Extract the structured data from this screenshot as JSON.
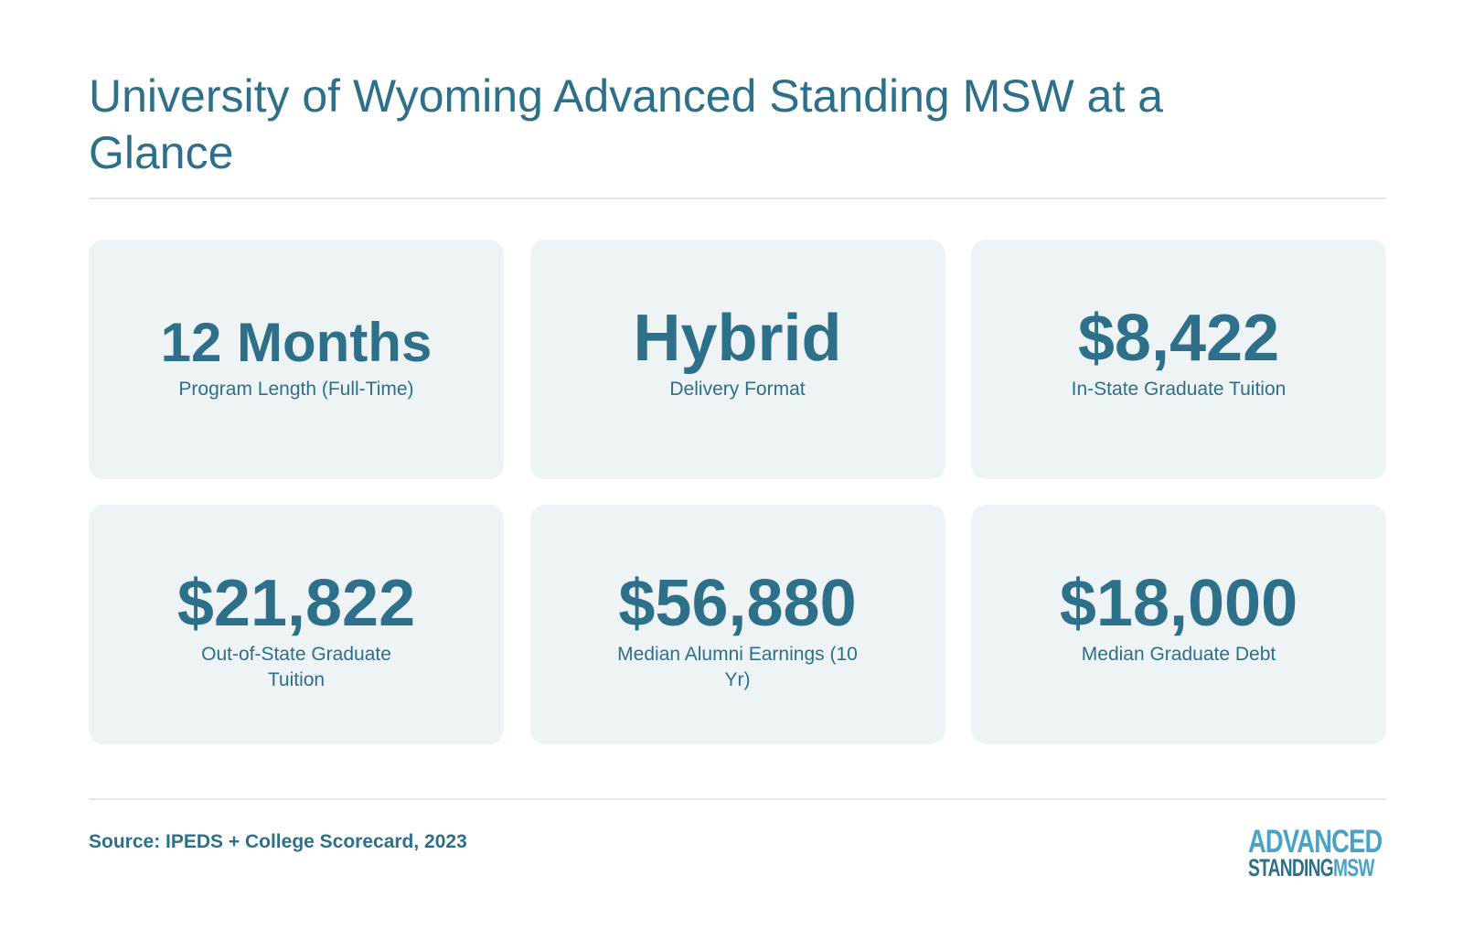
{
  "title": "University of Wyoming Advanced Standing MSW at a Glance",
  "stats": [
    {
      "value": "12 Months",
      "label": "Program Length (Full-Time)"
    },
    {
      "value": "Hybrid",
      "label": "Delivery Format"
    },
    {
      "value": "$8,422",
      "label": "In-State Graduate Tuition"
    },
    {
      "value": "$21,822",
      "label": "Out-of-State Graduate Tuition"
    },
    {
      "value": "$56,880",
      "label": "Median Alumni Earnings (10 Yr)"
    },
    {
      "value": "$18,000",
      "label": "Median Graduate Debt"
    }
  ],
  "source": "Source: IPEDS + College Scorecard, 2023",
  "logo": {
    "line1": "ADVANCED",
    "line2_a": "STANDING",
    "line2_b": "MSW"
  },
  "colors": {
    "primary": "#2e6f89",
    "accent": "#4aa3c7",
    "card_bg": "#eef3f5",
    "rule": "#dde8ec"
  }
}
